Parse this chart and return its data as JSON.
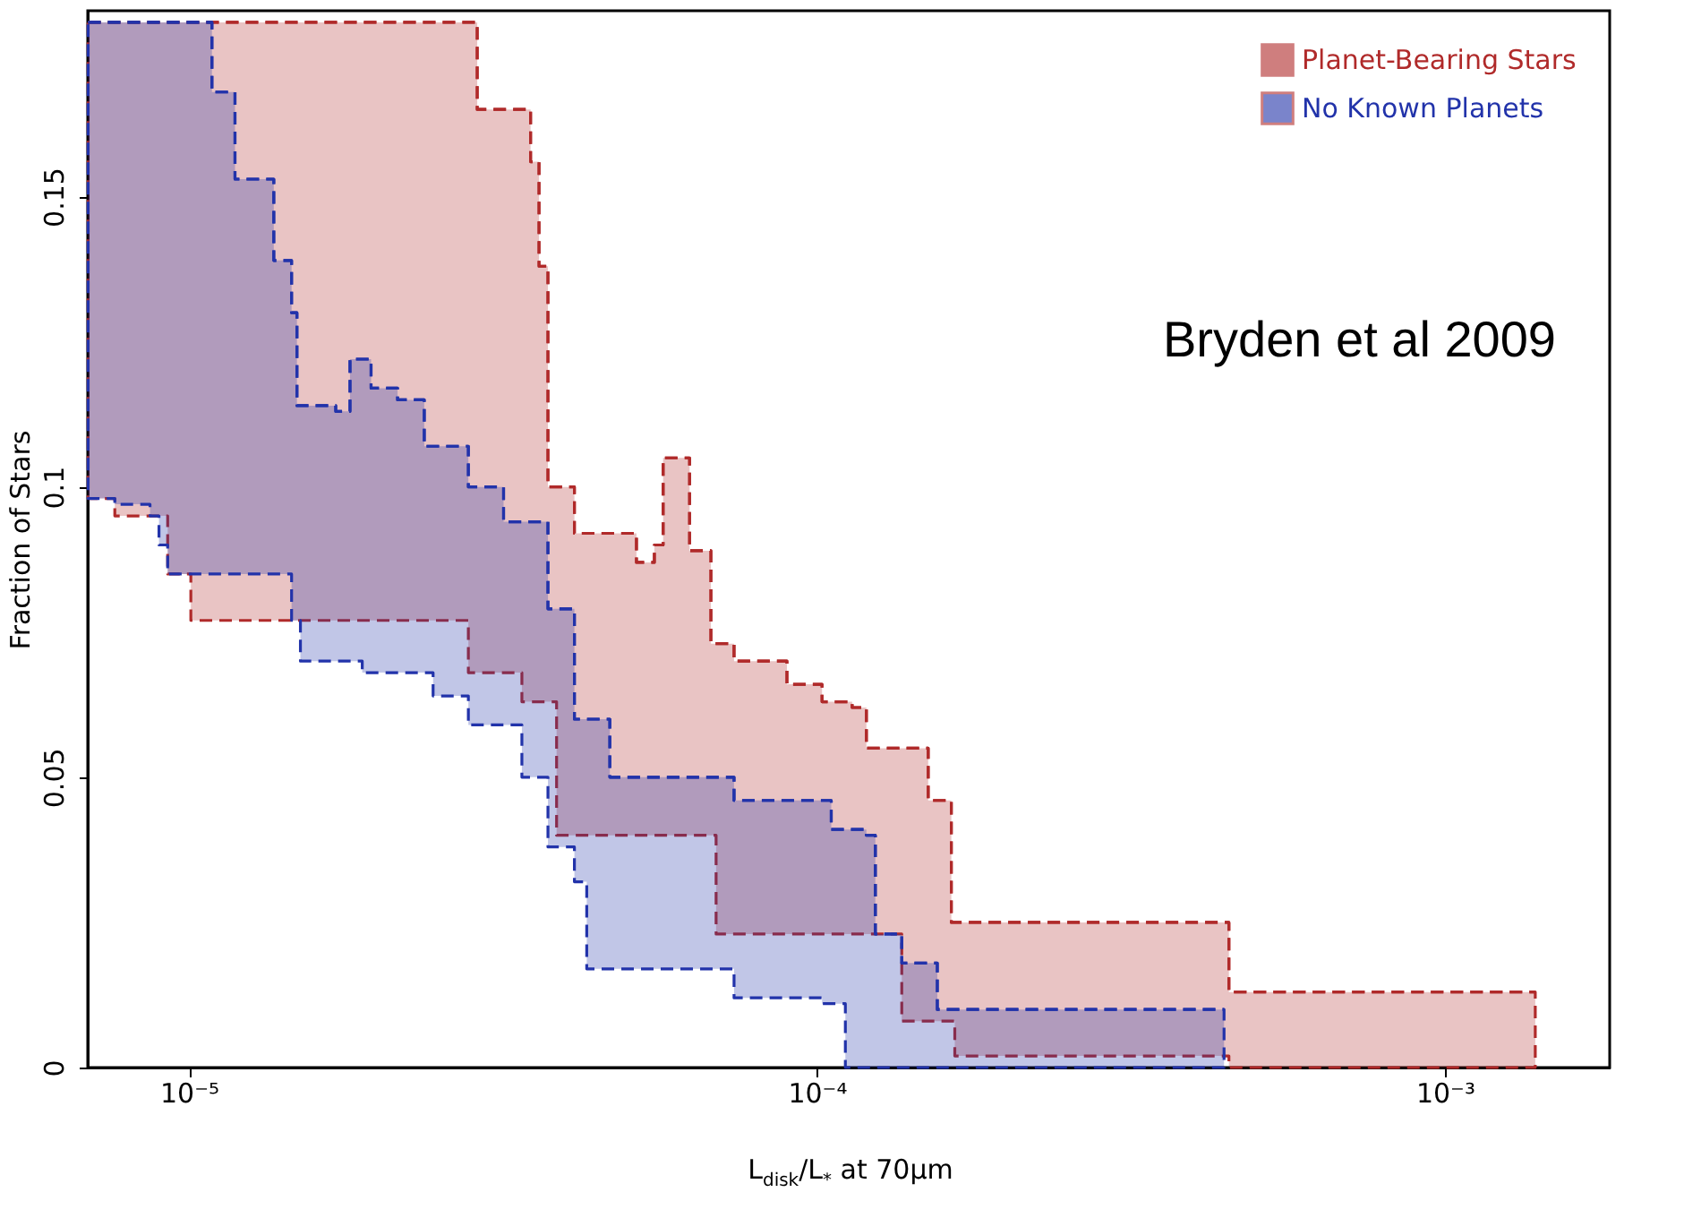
{
  "chart_data": {
    "type": "step",
    "xlabel": "L$_{disk}$/L$_{*}$ at 70μm",
    "ylabel": "Fraction of Stars",
    "annotations": [
      "Bryden et al 2009"
    ],
    "log": "x",
    "xlim": [
      6.9e-06,
      0.00183
    ],
    "xticks": [
      {
        "value": 1e-05,
        "label": "10⁻⁵"
      },
      {
        "value": 0.0001,
        "label": "10⁻⁴"
      },
      {
        "value": 0.001,
        "label": "10⁻³"
      }
    ],
    "ylim": [
      0,
      0.182
    ],
    "yticks": [
      0,
      0.05,
      0.1,
      0.15
    ],
    "grid": false,
    "legend": "top right",
    "line_style": "dashed",
    "series": [
      {
        "name": "Planet-Bearing Stars",
        "color": "#b02a2a",
        "x": [
          6.91e-06,
          7.62e-06,
          9.25e-06,
          1.007e-05,
          2.786e-05,
          2.878e-05,
          3.39e-05,
          3.5e-05,
          3.61e-05,
          3.73e-05,
          3.85e-05,
          4.11e-05,
          5.16e-05,
          5.51e-05,
          5.69e-05,
          6.27e-05,
          6.78e-05,
          6.91e-05,
          7.38e-05,
          8.96e-05,
          0.0001019,
          0.0001138,
          0.0001199,
          0.0001365,
          0.0001504,
          0.0001637,
          0.0001658,
          0.000453,
          0.001393
        ],
        "values": [
          0.18,
          0.18,
          0.18,
          0.18,
          0.18,
          0.165,
          0.165,
          0.156,
          0.138,
          0.1,
          0.1,
          0.092,
          0.087,
          0.09,
          0.105,
          0.089,
          0.073,
          0.073,
          0.07,
          0.066,
          0.063,
          0.062,
          0.055,
          0.055,
          0.046,
          0.025,
          0.025,
          0.013,
          0.013
        ],
        "upper": [
          0.18,
          0.18,
          0.18,
          0.18,
          0.18,
          0.165,
          0.165,
          0.156,
          0.138,
          0.1,
          0.1,
          0.092,
          0.087,
          0.09,
          0.105,
          0.089,
          0.073,
          0.073,
          0.07,
          0.066,
          0.063,
          0.062,
          0.055,
          0.055,
          0.046,
          0.025,
          0.025,
          0.013,
          0.013
        ],
        "lower": [
          0.098,
          0.095,
          0.085,
          0.077,
          0.068,
          0.068,
          0.063,
          0.063,
          0.063,
          0.063,
          0.04,
          0.04,
          0.04,
          0.04,
          0.04,
          0.04,
          0.04,
          0.023,
          0.023,
          0.023,
          0.023,
          0.023,
          0.023,
          0.008,
          0.008,
          0.008,
          0.002,
          0,
          0
        ]
      },
      {
        "name": "No Known Planets",
        "color": "#2233aa",
        "x": [
          6.91e-06,
          7.62e-06,
          8.67e-06,
          8.96e-06,
          9.25e-06,
          9.87e-06,
          1.088e-05,
          1.184e-05,
          1.365e-05,
          1.457e-05,
          1.486e-05,
          1.505e-05,
          1.713e-05,
          1.805e-05,
          1.888e-05,
          1.95e-05,
          2.149e-05,
          2.37e-05,
          2.448e-05,
          2.786e-05,
          3.17e-05,
          3.39e-05,
          3.73e-05,
          4.11e-05,
          4.3e-05,
          4.68e-05,
          7.38e-05,
          0.0001019,
          0.0001054,
          0.000111,
          0.0001199,
          0.0001239,
          0.0001365,
          0.0001555,
          0.000445
        ],
        "values": [
          0.18,
          0.18,
          0.18,
          0.18,
          0.18,
          0.18,
          0.168,
          0.153,
          0.139,
          0.13,
          0.114,
          0.114,
          0.113,
          0.122,
          0.122,
          0.117,
          0.115,
          0.107,
          0.107,
          0.1,
          0.094,
          0.094,
          0.079,
          0.06,
          0.06,
          0.05,
          0.046,
          0.046,
          0.041,
          0.041,
          0.04,
          0.023,
          0.018,
          0.01,
          0.01
        ],
        "upper": [
          0.18,
          0.18,
          0.18,
          0.18,
          0.18,
          0.18,
          0.168,
          0.153,
          0.139,
          0.13,
          0.114,
          0.114,
          0.113,
          0.122,
          0.122,
          0.117,
          0.115,
          0.107,
          0.107,
          0.1,
          0.094,
          0.094,
          0.079,
          0.06,
          0.06,
          0.05,
          0.046,
          0.046,
          0.041,
          0.041,
          0.04,
          0.023,
          0.018,
          0.01,
          0.01
        ],
        "lower": [
          0.098,
          0.097,
          0.095,
          0.09,
          0.085,
          0.085,
          0.085,
          0.085,
          0.085,
          0.077,
          0.077,
          0.07,
          0.07,
          0.07,
          0.068,
          0.068,
          0.068,
          0.068,
          0.064,
          0.059,
          0.059,
          0.05,
          0.038,
          0.032,
          0.017,
          0.017,
          0.012,
          0.011,
          0.011,
          0,
          0,
          0,
          0,
          0,
          0
        ]
      }
    ]
  }
}
